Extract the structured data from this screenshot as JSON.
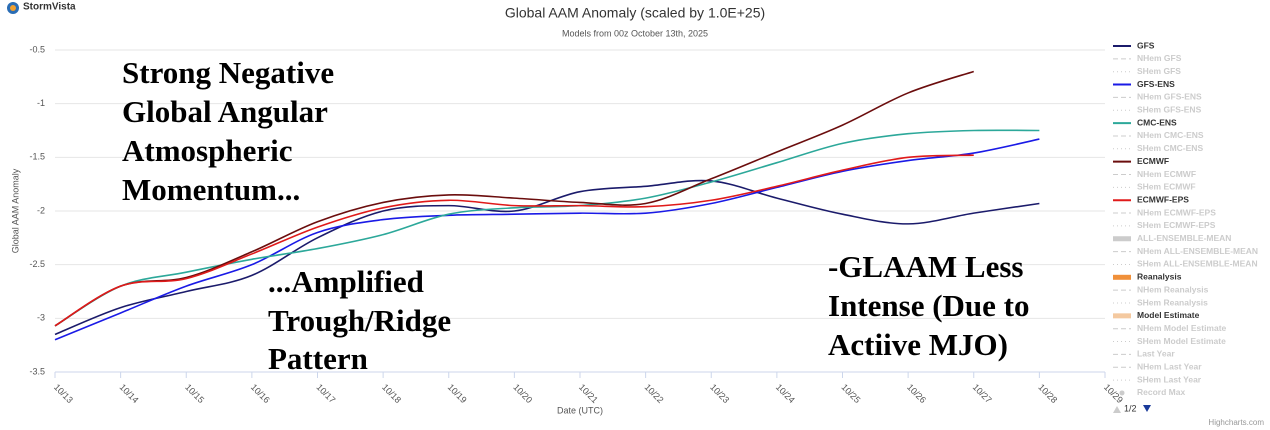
{
  "logo": "StormVista",
  "credits": "Highcharts.com",
  "pager": "1/2",
  "chart_data": {
    "type": "line",
    "title": "Global AAM Anomaly (scaled by 1.0E+25)",
    "subtitle": "Models from 00z October 13th, 2025",
    "y_label": "Global AAM Anomaly",
    "x_label": "Date (UTC)",
    "categories": [
      "10/13",
      "10/14",
      "10/15",
      "10/16",
      "10/17",
      "10/18",
      "10/19",
      "10/20",
      "10/21",
      "10/22",
      "10/23",
      "10/24",
      "10/25",
      "10/26",
      "10/27",
      "10/28",
      "10/29"
    ],
    "ylim": [
      -3.5,
      -0.5
    ],
    "yticks": [
      -3.5,
      -3,
      -2.5,
      -2,
      -1.5,
      -1,
      -0.5
    ],
    "grid": true,
    "series": [
      {
        "name": "GFS",
        "color": "#1b1b6b",
        "visible": true,
        "symbol": "line",
        "values": [
          -3.15,
          -2.9,
          -2.75,
          -2.6,
          -2.25,
          -2.0,
          -1.95,
          -2.0,
          -1.82,
          -1.77,
          -1.72,
          -1.88,
          -2.03,
          -2.12,
          -2.02,
          -1.93,
          null
        ]
      },
      {
        "name": "NHem GFS",
        "color": "#cccccc",
        "visible": false,
        "symbol": "dash"
      },
      {
        "name": "SHem GFS",
        "color": "#cccccc",
        "visible": false,
        "symbol": "dot"
      },
      {
        "name": "GFS-ENS",
        "color": "#1a1ae6",
        "visible": true,
        "symbol": "line",
        "values": [
          -3.2,
          -2.95,
          -2.7,
          -2.5,
          -2.2,
          -2.08,
          -2.04,
          -2.03,
          -2.02,
          -2.02,
          -1.93,
          -1.78,
          -1.63,
          -1.53,
          -1.46,
          -1.33,
          null
        ]
      },
      {
        "name": "NHem GFS-ENS",
        "color": "#cccccc",
        "visible": false,
        "symbol": "dash"
      },
      {
        "name": "SHem GFS-ENS",
        "color": "#cccccc",
        "visible": false,
        "symbol": "dot"
      },
      {
        "name": "CMC-ENS",
        "color": "#2ca89a",
        "visible": true,
        "symbol": "line",
        "values": [
          -3.07,
          -2.7,
          -2.57,
          -2.45,
          -2.35,
          -2.22,
          -2.03,
          -1.97,
          -1.95,
          -1.88,
          -1.73,
          -1.55,
          -1.37,
          -1.28,
          -1.25,
          -1.25,
          null
        ]
      },
      {
        "name": "NHem CMC-ENS",
        "color": "#cccccc",
        "visible": false,
        "symbol": "dash"
      },
      {
        "name": "SHem CMC-ENS",
        "color": "#cccccc",
        "visible": false,
        "symbol": "dot"
      },
      {
        "name": "ECMWF",
        "color": "#6b0d0d",
        "visible": true,
        "symbol": "line",
        "values": [
          -3.07,
          -2.7,
          -2.62,
          -2.38,
          -2.1,
          -1.92,
          -1.85,
          -1.88,
          -1.92,
          -1.93,
          -1.7,
          -1.45,
          -1.2,
          -0.9,
          -0.7,
          null,
          null
        ]
      },
      {
        "name": "NHem ECMWF",
        "color": "#cccccc",
        "visible": false,
        "symbol": "dash"
      },
      {
        "name": "SHem ECMWF",
        "color": "#cccccc",
        "visible": false,
        "symbol": "dot"
      },
      {
        "name": "ECMWF-EPS",
        "color": "#e01a1a",
        "visible": true,
        "symbol": "line",
        "values": [
          -3.07,
          -2.7,
          -2.63,
          -2.4,
          -2.15,
          -1.97,
          -1.9,
          -1.95,
          -1.95,
          -1.96,
          -1.9,
          -1.77,
          -1.62,
          -1.5,
          -1.48,
          null,
          null
        ]
      },
      {
        "name": "NHem ECMWF-EPS",
        "color": "#cccccc",
        "visible": false,
        "symbol": "dash"
      },
      {
        "name": "SHem ECMWF-EPS",
        "color": "#cccccc",
        "visible": false,
        "symbol": "dot"
      },
      {
        "name": "ALL-ENSEMBLE-MEAN",
        "color": "#cccccc",
        "visible": false,
        "symbol": "bar"
      },
      {
        "name": "NHem ALL-ENSEMBLE-MEAN",
        "color": "#cccccc",
        "visible": false,
        "symbol": "dash"
      },
      {
        "name": "SHem ALL-ENSEMBLE-MEAN",
        "color": "#cccccc",
        "visible": false,
        "symbol": "dot"
      },
      {
        "name": "Reanalysis",
        "color": "#f0903a",
        "visible": true,
        "symbol": "bar"
      },
      {
        "name": "NHem Reanalysis",
        "color": "#cccccc",
        "visible": false,
        "symbol": "dash"
      },
      {
        "name": "SHem Reanalysis",
        "color": "#cccccc",
        "visible": false,
        "symbol": "dot"
      },
      {
        "name": "Model Estimate",
        "color": "#f4c9a0",
        "visible": true,
        "symbol": "bar"
      },
      {
        "name": "NHem Model Estimate",
        "color": "#cccccc",
        "visible": false,
        "symbol": "dash"
      },
      {
        "name": "SHem Model Estimate",
        "color": "#cccccc",
        "visible": false,
        "symbol": "dot"
      },
      {
        "name": "Last Year",
        "color": "#cccccc",
        "visible": false,
        "symbol": "dash"
      },
      {
        "name": "NHem Last Year",
        "color": "#cccccc",
        "visible": false,
        "symbol": "dash"
      },
      {
        "name": "SHem Last Year",
        "color": "#cccccc",
        "visible": false,
        "symbol": "dot"
      },
      {
        "name": "Record Max",
        "color": "#cccccc",
        "visible": false,
        "symbol": "marker"
      }
    ],
    "annotations": [
      {
        "lines": [
          "Strong Negative",
          "Global Angular",
          "Atmospheric",
          "Momentum..."
        ]
      },
      {
        "lines": [
          "...Amplified",
          "Trough/Ridge",
          "Pattern"
        ]
      },
      {
        "lines": [
          "-GLAAM Less",
          "Intense (Due to",
          "Actiive MJO)"
        ]
      }
    ]
  }
}
